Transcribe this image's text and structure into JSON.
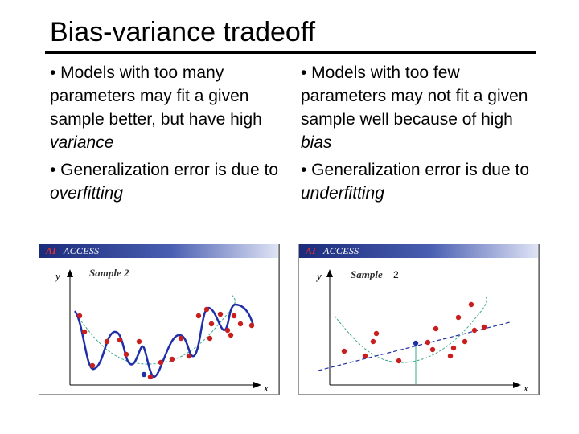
{
  "slide": {
    "title": "Bias-variance tradeoff",
    "left_column": {
      "bullet1_prefix": "• Models with too many parameters may fit a given sample better, but have high ",
      "bullet1_em": "variance",
      "bullet2_prefix": "• Generalization error is due to ",
      "bullet2_em": "overfitting"
    },
    "right_column": {
      "bullet1_prefix": "• Models with too few parameters may not fit a given sample well because of high ",
      "bullet1_em": "bias",
      "bullet2_prefix": "• Generalization error is due to ",
      "bullet2_em": "underfitting"
    }
  },
  "figures": {
    "left": {
      "brand_ai": "AI",
      "brand_access": "ACCESS",
      "y_label": "y",
      "x_label": "x",
      "sample_label": "Sample 2",
      "sample_number": ""
    },
    "right": {
      "brand_ai": "AI",
      "brand_access": "ACCESS",
      "y_label": "y",
      "x_label": "x",
      "sample_label": "Sample",
      "sample_number": "2"
    }
  },
  "colors": {
    "points": "#c81e1e",
    "fit_curve": "#1f2fa8",
    "true_curve": "#3aa88a",
    "highlight_point": "#1f2fa8"
  }
}
